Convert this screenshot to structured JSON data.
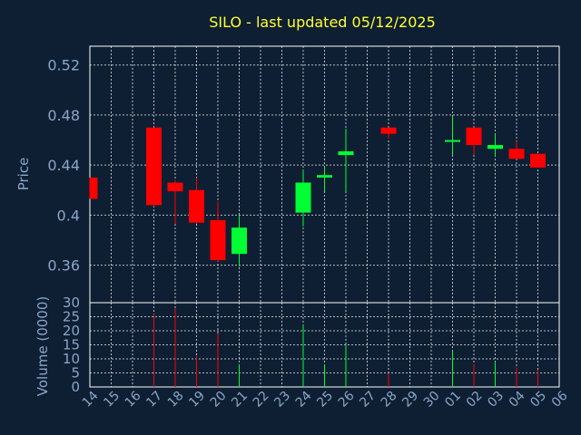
{
  "colors": {
    "background": "#0e1f33",
    "frame": "#ffffff",
    "grid": "#ffffff",
    "up": "#00ff33",
    "down": "#ff0000",
    "title": "#ffff33",
    "text": "#8aa6c8"
  },
  "chart_data": {
    "type": "candlestick",
    "title": "SILO - last updated 05/12/2025",
    "xlabel": "Day",
    "ylabel": "Price",
    "volume_label": "Volume (0000)",
    "grid": true,
    "price_ylim": [
      0.33,
      0.535
    ],
    "price_ticks": [
      "0.52",
      "0.48",
      "0.44",
      "0.4",
      "0.36"
    ],
    "price_tick_values": [
      0.52,
      0.48,
      0.44,
      0.4,
      0.36
    ],
    "volume_ylim": [
      0,
      30
    ],
    "volume_ticks": [
      "30",
      "25",
      "20",
      "15",
      "10",
      "5",
      "0"
    ],
    "volume_tick_values": [
      30,
      25,
      20,
      15,
      10,
      5,
      0
    ],
    "categories": [
      "14",
      "15",
      "16",
      "17",
      "18",
      "19",
      "20",
      "21",
      "22",
      "23",
      "24",
      "25",
      "26",
      "27",
      "28",
      "29",
      "30",
      "01",
      "02",
      "03",
      "04",
      "05",
      "06"
    ],
    "candles": [
      {
        "day": "14",
        "open": 0.43,
        "high": 0.43,
        "low": 0.413,
        "close": 0.413,
        "volume": 0
      },
      {
        "day": "15",
        "open": null,
        "high": null,
        "low": null,
        "close": null,
        "volume": 0
      },
      {
        "day": "16",
        "open": null,
        "high": null,
        "low": null,
        "close": null,
        "volume": 0
      },
      {
        "day": "17",
        "open": 0.47,
        "high": 0.47,
        "low": 0.407,
        "close": 0.408,
        "volume": 26
      },
      {
        "day": "18",
        "open": 0.426,
        "high": 0.428,
        "low": 0.393,
        "close": 0.419,
        "volume": 28
      },
      {
        "day": "19",
        "open": 0.42,
        "high": 0.43,
        "low": 0.393,
        "close": 0.394,
        "volume": 11
      },
      {
        "day": "20",
        "open": 0.396,
        "high": 0.411,
        "low": 0.363,
        "close": 0.364,
        "volume": 19
      },
      {
        "day": "21",
        "open": 0.369,
        "high": 0.4,
        "low": 0.359,
        "close": 0.39,
        "volume": 8
      },
      {
        "day": "22",
        "open": null,
        "high": null,
        "low": null,
        "close": null,
        "volume": 0
      },
      {
        "day": "23",
        "open": null,
        "high": null,
        "low": null,
        "close": null,
        "volume": 0
      },
      {
        "day": "24",
        "open": 0.402,
        "high": 0.436,
        "low": 0.391,
        "close": 0.426,
        "volume": 22
      },
      {
        "day": "25",
        "open": 0.43,
        "high": 0.439,
        "low": 0.419,
        "close": 0.432,
        "volume": 8
      },
      {
        "day": "26",
        "open": 0.448,
        "high": 0.469,
        "low": 0.419,
        "close": 0.451,
        "volume": 15
      },
      {
        "day": "27",
        "open": null,
        "high": null,
        "low": null,
        "close": null,
        "volume": 0
      },
      {
        "day": "28",
        "open": 0.47,
        "high": 0.47,
        "low": 0.461,
        "close": 0.465,
        "volume": 5
      },
      {
        "day": "29",
        "open": null,
        "high": null,
        "low": null,
        "close": null,
        "volume": 0
      },
      {
        "day": "30",
        "open": null,
        "high": null,
        "low": null,
        "close": null,
        "volume": 0
      },
      {
        "day": "01",
        "open": 0.459,
        "high": 0.479,
        "low": 0.448,
        "close": 0.46,
        "volume": 13
      },
      {
        "day": "02",
        "open": 0.47,
        "high": 0.47,
        "low": 0.448,
        "close": 0.456,
        "volume": 8
      },
      {
        "day": "03",
        "open": 0.453,
        "high": 0.465,
        "low": 0.447,
        "close": 0.456,
        "volume": 9
      },
      {
        "day": "04",
        "open": 0.453,
        "high": 0.459,
        "low": 0.445,
        "close": 0.445,
        "volume": 7
      },
      {
        "day": "05",
        "open": 0.449,
        "high": 0.449,
        "low": 0.438,
        "close": 0.438,
        "volume": 6
      },
      {
        "day": "06",
        "open": null,
        "high": null,
        "low": null,
        "close": null,
        "volume": 0
      }
    ]
  }
}
